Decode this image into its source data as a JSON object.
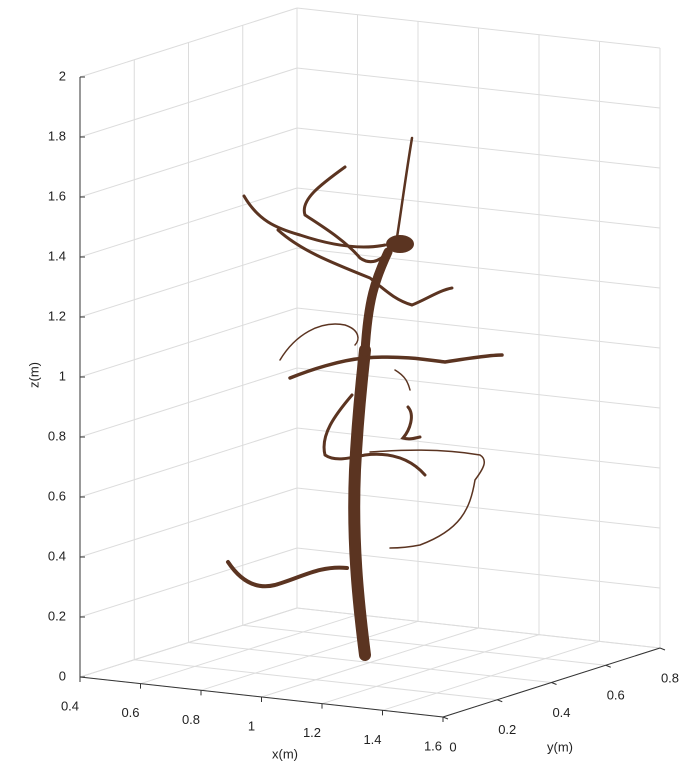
{
  "chart_data": {
    "type": "line3d",
    "xlabel": "x(m)",
    "ylabel": "y(m)",
    "zlabel": "z(m)",
    "xlim": [
      0.4,
      1.6
    ],
    "ylim": [
      0,
      0.8
    ],
    "zlim": [
      0,
      2
    ],
    "xticks": [
      0.4,
      0.6,
      0.8,
      1,
      1.2,
      1.4,
      1.6
    ],
    "yticks": [
      0,
      0.2,
      0.4,
      0.6,
      0.8
    ],
    "zticks": [
      0,
      0.2,
      0.4,
      0.6,
      0.8,
      1,
      1.2,
      1.4,
      1.6,
      1.8,
      2
    ],
    "grid": true
  }
}
